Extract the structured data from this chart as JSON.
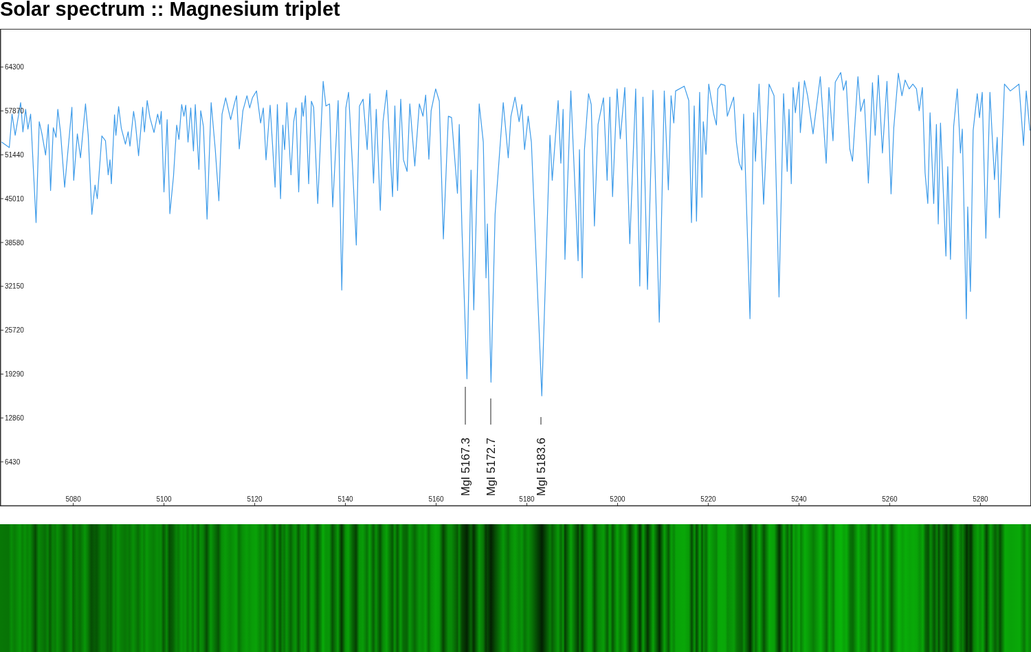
{
  "chart_data": {
    "type": "line",
    "title": "Solar spectrum :: Magnesium triplet",
    "xlim": [
      5064,
      5291
    ],
    "xticks": [
      5080,
      5100,
      5120,
      5140,
      5160,
      5180,
      5200,
      5220,
      5240,
      5260,
      5280
    ],
    "ylim": [
      0,
      69800
    ],
    "yticks": [
      6430,
      12860,
      19290,
      25720,
      32150,
      38580,
      45010,
      51440,
      57870,
      64300
    ],
    "x": [
      5064.2,
      5065.9,
      5066.5,
      5067.2,
      5068.4,
      5068.9,
      5069.5,
      5070.0,
      5070.6,
      5071.8,
      5072.5,
      5073.1,
      5073.9,
      5074.5,
      5075.0,
      5075.6,
      5076.2,
      5076.6,
      5077.2,
      5078.1,
      5079.7,
      5080.1,
      5080.9,
      5081.6,
      5082.7,
      5083.3,
      5084.1,
      5084.8,
      5085.3,
      5086.3,
      5087.1,
      5087.7,
      5088.1,
      5088.4,
      5089.1,
      5089.4,
      5090.0,
      5090.6,
      5091.5,
      5092.1,
      5092.5,
      5093.3,
      5093.7,
      5094.4,
      5095.3,
      5095.7,
      5096.3,
      5096.9,
      5097.8,
      5098.6,
      5099.1,
      5099.4,
      5100.0,
      5100.7,
      5101.3,
      5102.1,
      5102.8,
      5103.3,
      5103.9,
      5104.4,
      5104.8,
      5105.3,
      5105.9,
      5106.5,
      5106.9,
      5107.7,
      5108.1,
      5108.7,
      5109.5,
      5110.4,
      5111.3,
      5112.1,
      5112.8,
      5113.6,
      5114.7,
      5115.4,
      5116.0,
      5116.6,
      5117.4,
      5118.3,
      5118.9,
      5119.5,
      5120.4,
      5121.3,
      5121.9,
      5122.5,
      5123.4,
      5124.5,
      5125.0,
      5125.7,
      5126.2,
      5126.6,
      5127.1,
      5128.0,
      5128.6,
      5129.1,
      5129.7,
      5130.4,
      5130.7,
      5131.2,
      5131.9,
      5132.5,
      5133.0,
      5133.9,
      5134.7,
      5135.1,
      5135.7,
      5136.5,
      5137.2,
      5138.4,
      5139.2,
      5140.1,
      5140.7,
      5141.6,
      5142.4,
      5143.1,
      5143.9,
      5144.8,
      5145.4,
      5146.2,
      5146.8,
      5147.7,
      5148.3,
      5149.1,
      5150.4,
      5150.9,
      5151.5,
      5152.2,
      5152.8,
      5153.6,
      5154.2,
      5155.3,
      5156.3,
      5157.1,
      5157.7,
      5158.4,
      5158.9,
      5159.9,
      5160.7,
      5161.6,
      5162.7,
      5163.4,
      5164.7,
      5165.1,
      5165.7,
      5166.8,
      5167.7,
      5168.3,
      5169.5,
      5170.4,
      5171.0,
      5171.3,
      5172.1,
      5173.0,
      5174.8,
      5175.9,
      5176.5,
      5177.4,
      5178.3,
      5178.9,
      5179.5,
      5180.3,
      5181.0,
      5183.3,
      5185.1,
      5185.6,
      5186.9,
      5187.5,
      5188.0,
      5188.4,
      5189.7,
      5191.3,
      5191.6,
      5192.2,
      5192.7,
      5193.6,
      5194.2,
      5194.9,
      5195.7,
      5196.9,
      5197.7,
      5198.3,
      5198.9,
      5199.9,
      5200.6,
      5201.6,
      5202.7,
      5204.0,
      5204.9,
      5205.6,
      5206.6,
      5207.8,
      5209.2,
      5210.3,
      5211.2,
      5211.8,
      5212.4,
      5212.8,
      5214.7,
      5215.7,
      5216.3,
      5216.9,
      5217.4,
      5218.1,
      5218.6,
      5218.9,
      5219.5,
      5220.1,
      5221.2,
      5221.8,
      5222.1,
      5222.8,
      5223.7,
      5224.2,
      5225.6,
      5226.2,
      5226.8,
      5227.4,
      5227.8,
      5229.2,
      5230.0,
      5230.4,
      5231.2,
      5232.2,
      5233.4,
      5234.5,
      5235.6,
      5236.6,
      5237.4,
      5237.8,
      5238.3,
      5238.7,
      5239.2,
      5240.0,
      5240.3,
      5241.2,
      5241.9,
      5243.1,
      5244.7,
      5246.0,
      5246.6,
      5247.5,
      5248.0,
      5249.2,
      5249.8,
      5250.4,
      5251.2,
      5251.8,
      5253.0,
      5253.6,
      5254.4,
      5255.3,
      5256.2,
      5256.8,
      5257.5,
      5258.4,
      5259.4,
      5260.3,
      5260.9,
      5261.9,
      5262.7,
      5263.4,
      5264.3,
      5265.1,
      5265.9,
      5266.5,
      5267.2,
      5267.8,
      5268.4,
      5268.9,
      5269.7,
      5270.3,
      5270.7,
      5271.2,
      5272.4,
      5272.8,
      5273.4,
      5274.1,
      5274.9,
      5275.6,
      5276.0,
      5276.9,
      5277.2,
      5277.8,
      5278.4,
      5279.3,
      5279.8,
      5280.4,
      5281.2,
      5282.1,
      5283.1,
      5283.7,
      5284.2,
      5285.3,
      5286.6,
      5288.5,
      5289.5,
      5290.1,
      5290.9
    ],
    "series": [
      {
        "color": "#3d9be9",
        "values": [
          53300,
          52500,
          57400,
          54300,
          59100,
          54800,
          58100,
          55200,
          57400,
          41500,
          56300,
          54500,
          51400,
          55900,
          46200,
          55400,
          54000,
          58100,
          54700,
          46700,
          58400,
          47700,
          54500,
          51000,
          58900,
          54300,
          42700,
          47000,
          45000,
          54200,
          53500,
          48500,
          50700,
          47200,
          57300,
          54300,
          58500,
          55300,
          53000,
          54800,
          52700,
          57800,
          56100,
          51300,
          58400,
          54800,
          59400,
          56900,
          54700,
          57400,
          55900,
          57800,
          46000,
          56600,
          42800,
          48300,
          55800,
          53700,
          58800,
          57100,
          58700,
          53300,
          58300,
          52000,
          58800,
          49300,
          57900,
          55600,
          42000,
          59100,
          52300,
          44700,
          57400,
          59800,
          56600,
          58600,
          60100,
          52300,
          57900,
          60100,
          58300,
          59800,
          60800,
          56100,
          58300,
          50700,
          58700,
          46700,
          58800,
          45000,
          55800,
          52200,
          59100,
          48500,
          56300,
          58300,
          46000,
          59100,
          57100,
          60100,
          47200,
          59300,
          58400,
          44300,
          56400,
          62200,
          58600,
          58900,
          43800,
          59400,
          31600,
          58300,
          60600,
          49300,
          38200,
          58600,
          59600,
          52200,
          60400,
          47300,
          58100,
          43300,
          56300,
          60900,
          45300,
          58600,
          46200,
          59600,
          50700,
          49000,
          58900,
          49800,
          58900,
          57100,
          60200,
          50800,
          57900,
          61100,
          59300,
          39100,
          57100,
          56900,
          45800,
          55900,
          40500,
          18600,
          49200,
          28700,
          58900,
          53300,
          33400,
          41300,
          18100,
          42700,
          59100,
          51000,
          57100,
          59900,
          56300,
          58800,
          52200,
          57100,
          53300,
          16100,
          54300,
          47700,
          59400,
          50200,
          58100,
          36100,
          60800,
          35900,
          52200,
          33400,
          52200,
          60400,
          58800,
          41000,
          55900,
          59800,
          47700,
          59900,
          45300,
          61100,
          53800,
          61300,
          38400,
          61100,
          32200,
          59900,
          31700,
          60900,
          26900,
          60800,
          46300,
          60100,
          56100,
          60800,
          61500,
          59400,
          41500,
          58600,
          41700,
          60600,
          45200,
          56300,
          51500,
          61800,
          57400,
          55800,
          61100,
          61800,
          61600,
          57100,
          59900,
          53300,
          50300,
          49200,
          57400,
          27400,
          57600,
          50500,
          61800,
          44200,
          61800,
          60100,
          30600,
          60400,
          49000,
          58100,
          47200,
          61300,
          57600,
          62100,
          54700,
          62300,
          60100,
          54500,
          62900,
          50200,
          61300,
          53500,
          62100,
          63500,
          60900,
          62300,
          52300,
          50500,
          62900,
          57800,
          59600,
          47300,
          62000,
          54300,
          63100,
          51700,
          62200,
          45700,
          55400,
          63400,
          60100,
          62400,
          61100,
          61800,
          61100,
          57900,
          61300,
          48800,
          44300,
          57600,
          44300,
          55900,
          41300,
          56100,
          36600,
          49700,
          36100,
          55600,
          61100,
          51700,
          55200,
          27400,
          43800,
          31400,
          55000,
          60400,
          56900,
          60600,
          39200,
          60600,
          47800,
          54000,
          42200,
          61800,
          60800,
          61800,
          52800,
          60800,
          55000
        ]
      }
    ],
    "annotations": [
      "MgI 5167.3",
      "MgI 5172.7",
      "MgI 5183.6"
    ]
  }
}
